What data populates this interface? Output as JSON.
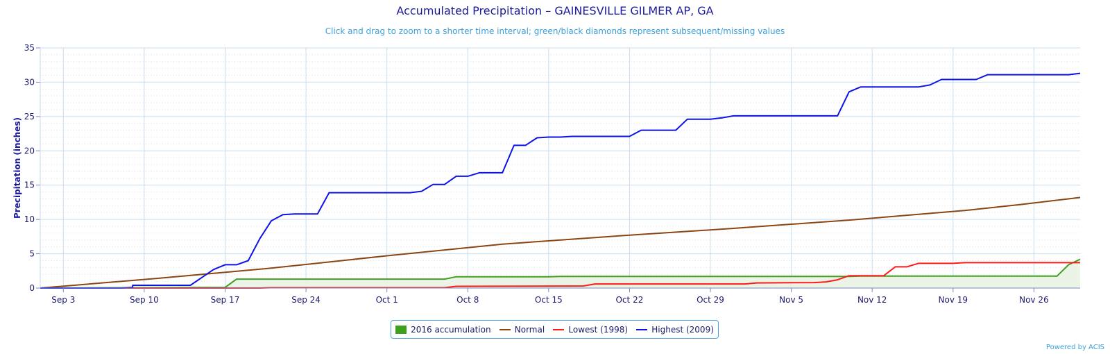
{
  "colors": {
    "accumulation": "#3ea01e",
    "accumulation_fill": "#e9f3e4",
    "normal": "#8b4513",
    "lowest": "#ff1a1a",
    "highest": "#0d13e6",
    "grid_major": "#c6def2",
    "grid_minor": "#dddddd"
  },
  "chart_data": {
    "type": "line",
    "title": "Accumulated Precipitation – GAINESVILLE GILMER AP, GA",
    "subtitle": "Click and drag to zoom to a shorter time interval; green/black diamonds represent subsequent/missing values",
    "ylabel": "Precipitation (inches)",
    "xlabel": "",
    "ylim": [
      0,
      35
    ],
    "yticks": [
      0,
      5,
      10,
      15,
      20,
      25,
      30,
      35
    ],
    "x_start": "Sep 1",
    "x_end": "Nov 29",
    "xticks": [
      {
        "day": 2,
        "label": "Sep 3"
      },
      {
        "day": 9,
        "label": "Sep 10"
      },
      {
        "day": 16,
        "label": "Sep 17"
      },
      {
        "day": 23,
        "label": "Sep 24"
      },
      {
        "day": 30,
        "label": "Oct 1"
      },
      {
        "day": 37,
        "label": "Oct 8"
      },
      {
        "day": 44,
        "label": "Oct 15"
      },
      {
        "day": 51,
        "label": "Oct 22"
      },
      {
        "day": 58,
        "label": "Oct 29"
      },
      {
        "day": 65,
        "label": "Nov 5"
      },
      {
        "day": 72,
        "label": "Nov 12"
      },
      {
        "day": 79,
        "label": "Nov 19"
      },
      {
        "day": 86,
        "label": "Nov 26"
      }
    ],
    "grid": true,
    "legend_position": "bottom-center",
    "series": [
      {
        "key": "highest",
        "name": "Highest (2009)",
        "points": [
          [
            0,
            0
          ],
          [
            7,
            0
          ],
          [
            8,
            0.1
          ],
          [
            8,
            0.4
          ],
          [
            13,
            0.4
          ],
          [
            15,
            2.7
          ],
          [
            16,
            3.4
          ],
          [
            17,
            3.4
          ],
          [
            18,
            4.0
          ],
          [
            19,
            7.2
          ],
          [
            20,
            9.8
          ],
          [
            21,
            10.7
          ],
          [
            22,
            10.8
          ],
          [
            24,
            10.8
          ],
          [
            25,
            13.9
          ],
          [
            32,
            13.9
          ],
          [
            33,
            14.1
          ],
          [
            34,
            15.1
          ],
          [
            35,
            15.1
          ],
          [
            36,
            16.3
          ],
          [
            37,
            16.3
          ],
          [
            38,
            16.8
          ],
          [
            40,
            16.8
          ],
          [
            41,
            20.8
          ],
          [
            42,
            20.8
          ],
          [
            43,
            21.9
          ],
          [
            44,
            22.0
          ],
          [
            45,
            22.0
          ],
          [
            46,
            22.1
          ],
          [
            51,
            22.1
          ],
          [
            52,
            23.0
          ],
          [
            55,
            23.0
          ],
          [
            56,
            24.6
          ],
          [
            58,
            24.6
          ],
          [
            59,
            24.8
          ],
          [
            60,
            25.1
          ],
          [
            69,
            25.1
          ],
          [
            70,
            28.6
          ],
          [
            71,
            29.3
          ],
          [
            76,
            29.3
          ],
          [
            77,
            29.6
          ],
          [
            78,
            30.4
          ],
          [
            81,
            30.4
          ],
          [
            82,
            31.1
          ],
          [
            89,
            31.1
          ],
          [
            90,
            31.3
          ]
        ]
      },
      {
        "key": "normal",
        "name": "Normal",
        "points": [
          [
            0,
            0
          ],
          [
            10,
            1.4
          ],
          [
            20,
            2.9
          ],
          [
            30,
            4.7
          ],
          [
            40,
            6.4
          ],
          [
            50,
            7.6
          ],
          [
            60,
            8.7
          ],
          [
            70,
            9.9
          ],
          [
            80,
            11.3
          ],
          [
            85,
            12.2
          ],
          [
            90,
            13.2
          ]
        ]
      },
      {
        "key": "lowest",
        "name": "Lowest (1998)",
        "points": [
          [
            0,
            0
          ],
          [
            19,
            0
          ],
          [
            20,
            0.05
          ],
          [
            35,
            0.05
          ],
          [
            36,
            0.25
          ],
          [
            47,
            0.3
          ],
          [
            48,
            0.6
          ],
          [
            61,
            0.6
          ],
          [
            62,
            0.75
          ],
          [
            67,
            0.8
          ],
          [
            68,
            0.9
          ],
          [
            69,
            1.2
          ],
          [
            70,
            1.8
          ],
          [
            73,
            1.8
          ],
          [
            74,
            3.1
          ],
          [
            75,
            3.1
          ],
          [
            76,
            3.6
          ],
          [
            79,
            3.6
          ],
          [
            80,
            3.7
          ],
          [
            90,
            3.7
          ]
        ]
      },
      {
        "key": "accumulation",
        "name": "2016 accumulation",
        "points": [
          [
            0,
            0
          ],
          [
            16,
            0.1
          ],
          [
            17,
            1.3
          ],
          [
            35,
            1.3
          ],
          [
            36,
            1.65
          ],
          [
            44,
            1.65
          ],
          [
            45,
            1.7
          ],
          [
            70,
            1.7
          ],
          [
            71,
            1.75
          ],
          [
            88,
            1.75
          ],
          [
            89,
            3.4
          ],
          [
            90,
            4.2
          ]
        ]
      }
    ]
  },
  "legend": {
    "items": [
      {
        "key": "accumulation",
        "label": "2016 accumulation"
      },
      {
        "key": "normal",
        "label": "Normal"
      },
      {
        "key": "lowest",
        "label": "Lowest (1998)"
      },
      {
        "key": "highest",
        "label": "Highest (2009)"
      }
    ]
  },
  "credits": "Powered by ACIS"
}
